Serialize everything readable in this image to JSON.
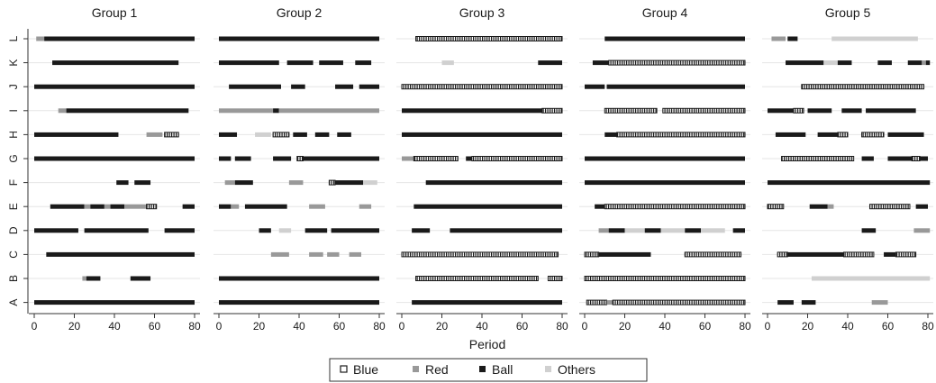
{
  "chart_data": {
    "type": "timeline",
    "xlabel": "Period",
    "xlim": [
      0,
      80
    ],
    "xticks": [
      0,
      20,
      40,
      60,
      80
    ],
    "rows": [
      "L",
      "K",
      "J",
      "I",
      "H",
      "G",
      "F",
      "E",
      "D",
      "C",
      "B",
      "A"
    ],
    "states": [
      {
        "key": "blue",
        "label": "Blue",
        "style": "hollow"
      },
      {
        "key": "red",
        "label": "Red",
        "color": "#999999"
      },
      {
        "key": "ball",
        "label": "Ball",
        "color": "#1a1a1a"
      },
      {
        "key": "others",
        "label": "Others",
        "color": "#d0d0d0"
      }
    ],
    "grid": "horizontal",
    "legend": "bottom-center",
    "panels": [
      {
        "title": "Group  1",
        "rows": {
          "L": [
            [
              "red",
              1,
              5
            ],
            [
              "ball",
              5,
              80
            ]
          ],
          "K": [
            [
              "ball",
              9,
              72
            ]
          ],
          "J": [
            [
              "ball",
              0,
              80
            ]
          ],
          "I": [
            [
              "red",
              12,
              16
            ],
            [
              "ball",
              16,
              77
            ]
          ],
          "H": [
            [
              "ball",
              0,
              42
            ],
            [
              "red",
              56,
              64
            ],
            [
              "blue",
              65,
              72
            ]
          ],
          "G": [
            [
              "ball",
              0,
              80
            ]
          ],
          "F": [
            [
              "ball",
              41,
              47
            ],
            [
              "ball",
              50,
              58
            ]
          ],
          "E": [
            [
              "ball",
              8,
              25
            ],
            [
              "red",
              25,
              28
            ],
            [
              "ball",
              28,
              35
            ],
            [
              "red",
              35,
              38
            ],
            [
              "ball",
              38,
              45
            ],
            [
              "red",
              45,
              56
            ],
            [
              "blue",
              56,
              61
            ],
            [
              "ball",
              74,
              80
            ]
          ],
          "D": [
            [
              "ball",
              0,
              22
            ],
            [
              "ball",
              25,
              57
            ],
            [
              "ball",
              65,
              80
            ]
          ],
          "C": [
            [
              "ball",
              6,
              80
            ]
          ],
          "B": [
            [
              "red",
              24,
              26
            ],
            [
              "ball",
              26,
              33
            ],
            [
              "ball",
              48,
              58
            ]
          ],
          "A": [
            [
              "ball",
              0,
              80
            ]
          ]
        }
      },
      {
        "title": "Group  2",
        "rows": {
          "L": [
            [
              "ball",
              0,
              80
            ]
          ],
          "K": [
            [
              "ball",
              0,
              30
            ],
            [
              "ball",
              34,
              47
            ],
            [
              "ball",
              50,
              62
            ],
            [
              "ball",
              68,
              76
            ]
          ],
          "J": [
            [
              "ball",
              5,
              31
            ],
            [
              "ball",
              36,
              43
            ],
            [
              "ball",
              58,
              67
            ],
            [
              "ball",
              70,
              80
            ]
          ],
          "I": [
            [
              "red",
              0,
              27
            ],
            [
              "ball",
              27,
              30
            ],
            [
              "red",
              30,
              80
            ]
          ],
          "H": [
            [
              "ball",
              0,
              9
            ],
            [
              "others",
              18,
              26
            ],
            [
              "blue",
              27,
              35
            ],
            [
              "ball",
              37,
              44
            ],
            [
              "ball",
              48,
              55
            ],
            [
              "ball",
              59,
              66
            ]
          ],
          "G": [
            [
              "ball",
              0,
              6
            ],
            [
              "ball",
              8,
              16
            ],
            [
              "ball",
              27,
              36
            ],
            [
              "blue",
              39,
              42
            ],
            [
              "ball",
              42,
              80
            ]
          ],
          "F": [
            [
              "red",
              3,
              8
            ],
            [
              "ball",
              8,
              17
            ],
            [
              "red",
              35,
              42
            ],
            [
              "blue",
              55,
              58
            ],
            [
              "ball",
              58,
              72
            ],
            [
              "others",
              72,
              79
            ]
          ],
          "E": [
            [
              "ball",
              0,
              6
            ],
            [
              "red",
              6,
              10
            ],
            [
              "ball",
              13,
              34
            ],
            [
              "red",
              45,
              53
            ],
            [
              "red",
              70,
              76
            ]
          ],
          "D": [
            [
              "ball",
              20,
              26
            ],
            [
              "others",
              30,
              36
            ],
            [
              "ball",
              43,
              54
            ],
            [
              "ball",
              56,
              80
            ]
          ],
          "C": [
            [
              "red",
              26,
              35
            ],
            [
              "red",
              45,
              52
            ],
            [
              "red",
              54,
              60
            ],
            [
              "red",
              65,
              71
            ]
          ],
          "B": [
            [
              "ball",
              0,
              80
            ]
          ],
          "A": [
            [
              "ball",
              0,
              80
            ]
          ]
        }
      },
      {
        "title": "Group  3",
        "rows": {
          "L": [
            [
              "blue",
              7,
              80
            ]
          ],
          "K": [
            [
              "others",
              20,
              26
            ],
            [
              "ball",
              68,
              80
            ]
          ],
          "J": [
            [
              "blue",
              0,
              80
            ]
          ],
          "I": [
            [
              "ball",
              0,
              70
            ],
            [
              "blue",
              70,
              80
            ]
          ],
          "H": [
            [
              "ball",
              0,
              80
            ]
          ],
          "G": [
            [
              "red",
              0,
              6
            ],
            [
              "blue",
              6,
              28
            ],
            [
              "ball",
              32,
              35
            ],
            [
              "blue",
              35,
              80
            ]
          ],
          "F": [
            [
              "ball",
              12,
              80
            ]
          ],
          "E": [
            [
              "ball",
              6,
              80
            ]
          ],
          "D": [
            [
              "ball",
              5,
              14
            ],
            [
              "ball",
              24,
              80
            ]
          ],
          "C": [
            [
              "blue",
              0,
              78
            ]
          ],
          "B": [
            [
              "blue",
              7,
              68
            ],
            [
              "blue",
              73,
              80
            ]
          ],
          "A": [
            [
              "ball",
              5,
              80
            ]
          ]
        }
      },
      {
        "title": "Group  4",
        "rows": {
          "L": [
            [
              "ball",
              10,
              80
            ]
          ],
          "K": [
            [
              "ball",
              4,
              12
            ],
            [
              "blue",
              12,
              80
            ]
          ],
          "J": [
            [
              "ball",
              0,
              10
            ],
            [
              "ball",
              11,
              80
            ]
          ],
          "I": [
            [
              "blue",
              10,
              36
            ],
            [
              "blue",
              39,
              80
            ]
          ],
          "H": [
            [
              "ball",
              10,
              16
            ],
            [
              "blue",
              16,
              80
            ]
          ],
          "G": [
            [
              "ball",
              0,
              80
            ]
          ],
          "F": [
            [
              "ball",
              0,
              80
            ]
          ],
          "E": [
            [
              "ball",
              5,
              10
            ],
            [
              "blue",
              10,
              80
            ]
          ],
          "D": [
            [
              "red",
              7,
              12
            ],
            [
              "ball",
              12,
              20
            ],
            [
              "others",
              20,
              30
            ],
            [
              "ball",
              30,
              38
            ],
            [
              "others",
              38,
              50
            ],
            [
              "ball",
              50,
              58
            ],
            [
              "others",
              58,
              70
            ],
            [
              "ball",
              74,
              80
            ]
          ],
          "C": [
            [
              "blue",
              0,
              7
            ],
            [
              "ball",
              7,
              33
            ],
            [
              "blue",
              50,
              78
            ]
          ],
          "B": [
            [
              "blue",
              0,
              80
            ]
          ],
          "A": [
            [
              "blue",
              1,
              11
            ],
            [
              "red",
              11,
              14
            ],
            [
              "blue",
              14,
              80
            ]
          ]
        }
      },
      {
        "title": "Group  5",
        "rows": {
          "L": [
            [
              "red",
              2,
              9
            ],
            [
              "ball",
              10,
              15
            ],
            [
              "others",
              32,
              75
            ]
          ],
          "K": [
            [
              "ball",
              9,
              28
            ],
            [
              "others",
              28,
              35
            ],
            [
              "ball",
              35,
              42
            ],
            [
              "ball",
              55,
              62
            ],
            [
              "ball",
              70,
              77
            ],
            [
              "red",
              77,
              79
            ],
            [
              "ball",
              79,
              81
            ]
          ],
          "J": [
            [
              "blue",
              17,
              78
            ]
          ],
          "I": [
            [
              "ball",
              0,
              13
            ],
            [
              "blue",
              13,
              18
            ],
            [
              "ball",
              20,
              32
            ],
            [
              "ball",
              37,
              47
            ],
            [
              "ball",
              49,
              74
            ]
          ],
          "H": [
            [
              "ball",
              4,
              19
            ],
            [
              "ball",
              25,
              35
            ],
            [
              "blue",
              35,
              40
            ],
            [
              "blue",
              47,
              58
            ],
            [
              "ball",
              60,
              78
            ]
          ],
          "G": [
            [
              "blue",
              7,
              43
            ],
            [
              "ball",
              47,
              53
            ],
            [
              "ball",
              60,
              72
            ],
            [
              "blue",
              72,
              76
            ],
            [
              "ball",
              76,
              80
            ]
          ],
          "F": [
            [
              "ball",
              0,
              81
            ]
          ],
          "E": [
            [
              "blue",
              0,
              8
            ],
            [
              "ball",
              21,
              30
            ],
            [
              "red",
              30,
              33
            ],
            [
              "blue",
              51,
              71
            ],
            [
              "ball",
              74,
              80
            ]
          ],
          "D": [
            [
              "ball",
              47,
              54
            ],
            [
              "red",
              73,
              81
            ]
          ],
          "C": [
            [
              "blue",
              5,
              10
            ],
            [
              "ball",
              10,
              38
            ],
            [
              "blue",
              38,
              53
            ],
            [
              "ball",
              58,
              64
            ],
            [
              "blue",
              64,
              74
            ]
          ],
          "B": [
            [
              "others",
              22,
              81
            ]
          ],
          "A": [
            [
              "ball",
              5,
              13
            ],
            [
              "ball",
              17,
              24
            ],
            [
              "red",
              52,
              60
            ]
          ]
        }
      }
    ]
  }
}
